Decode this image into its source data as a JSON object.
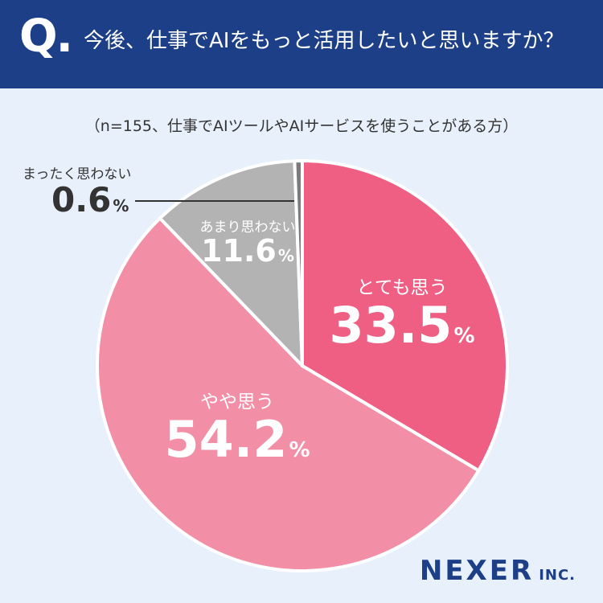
{
  "header": {
    "q_mark": "Q.",
    "title": "今後、仕事でAIをもっと活用したいと思いますか？"
  },
  "subtitle": "（n=155、仕事でAIツールやAIサービスを使うことがある方）",
  "logo": {
    "main": "NEXER",
    "suffix": "INC."
  },
  "chart_data": {
    "type": "pie",
    "unit": "%",
    "slices": [
      {
        "label": "とても思う",
        "value": 33.5,
        "display": "33.5",
        "color": "#ef5f84"
      },
      {
        "label": "やや思う",
        "value": 54.2,
        "display": "54.2",
        "color": "#f28fa7"
      },
      {
        "label": "あまり思わない",
        "value": 11.6,
        "display": "11.6",
        "color": "#b3b3b3"
      },
      {
        "label": "まったく思わない",
        "value": 0.6,
        "display": "0.6",
        "color": "#7b7b7b"
      }
    ]
  }
}
